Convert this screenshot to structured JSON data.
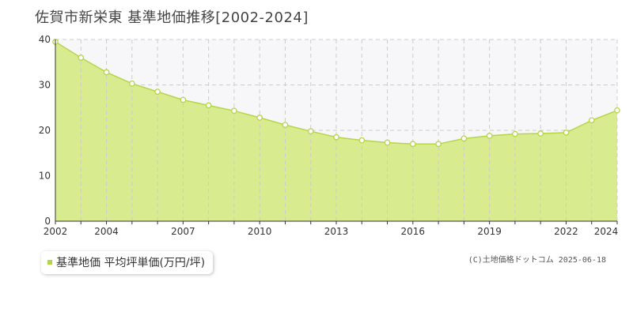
{
  "title": "佐賀市新栄東 基準地価推移[2002-2024]",
  "legend_label": "基準地価 平均坪単価(万円/坪)",
  "credit": "(C)土地価格ドットコム 2025-06-18",
  "colors": {
    "fill": "#d9eb8f",
    "line": "#b5d54a",
    "grid": "#cccccc",
    "plot_bg": "#f7f7fa"
  },
  "chart_data": {
    "type": "area",
    "x": [
      2002,
      2003,
      2004,
      2005,
      2006,
      2007,
      2008,
      2009,
      2010,
      2011,
      2012,
      2013,
      2014,
      2015,
      2016,
      2017,
      2018,
      2019,
      2020,
      2021,
      2022,
      2023,
      2024
    ],
    "series": [
      {
        "values": [
          39.5,
          36.0,
          32.8,
          30.3,
          28.5,
          26.7,
          25.5,
          24.3,
          22.8,
          21.2,
          19.8,
          18.5,
          17.8,
          17.3,
          17.0,
          17.0,
          18.2,
          18.8,
          19.2,
          19.3,
          19.5,
          22.2,
          24.4
        ]
      }
    ],
    "xlim": [
      2002,
      2024
    ],
    "ylim": [
      0,
      40
    ],
    "yticks": [
      0,
      10,
      20,
      30,
      40
    ],
    "xtick_labels": [
      "2002",
      "2004",
      "2007",
      "2010",
      "2013",
      "2016",
      "2019",
      "2022",
      "2024"
    ],
    "grid": true
  }
}
